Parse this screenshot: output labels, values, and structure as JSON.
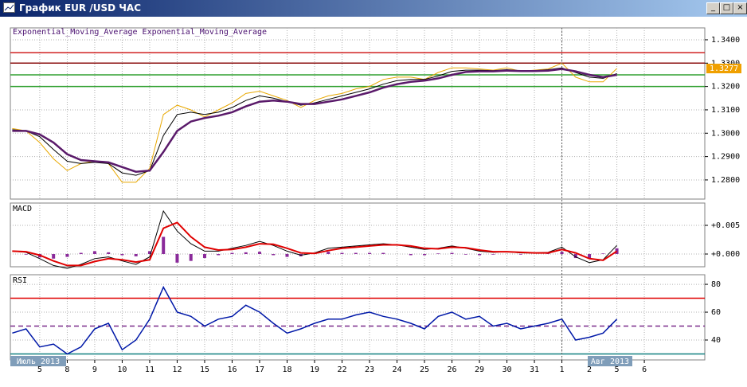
{
  "window": {
    "title": "График EUR /USD ЧАС"
  },
  "chart_data": [
    {
      "type": "line",
      "legend": [
        "Exponential_Moving_Average",
        "Exponential_Moving_Average"
      ],
      "x": [
        -1,
        -0.5,
        0,
        0.5,
        1,
        1.5,
        2,
        2.5,
        3,
        3.5,
        4,
        4.5,
        5,
        5.5,
        6,
        6.5,
        7,
        7.5,
        8,
        8.5,
        9,
        9.5,
        10,
        10.5,
        11,
        11.5,
        12,
        12.5,
        13,
        13.5,
        14,
        14.5,
        15,
        15.5,
        16,
        16.5,
        17,
        17.5,
        18,
        18.5,
        19,
        19.5,
        20,
        20.5,
        21
      ],
      "xlim": [
        -1.07,
        24.2
      ],
      "ylim": [
        1.2718,
        1.3451
      ],
      "yticks": [
        {
          "value": 1.28,
          "label": "1.2800"
        },
        {
          "value": 1.29,
          "label": "1.2900"
        },
        {
          "value": 1.3,
          "label": "1.3000"
        },
        {
          "value": 1.31,
          "label": "1.3100"
        },
        {
          "value": 1.32,
          "label": "1.3200"
        },
        {
          "value": 1.33,
          "label": "1.3300"
        },
        {
          "value": 1.34,
          "label": "1.3400"
        }
      ],
      "levels": [
        {
          "value": 1.3345,
          "color": "#d02020"
        },
        {
          "value": 1.33,
          "color": "#8b1010"
        },
        {
          "value": 1.325,
          "color": "#30a030"
        },
        {
          "value": 1.32,
          "color": "#30a030"
        }
      ],
      "last_price": 1.3277,
      "last_price_color": "#f0a000",
      "series": [
        {
          "color": "#e8a800",
          "width": 1,
          "values": [
            1.302,
            1.301,
            1.296,
            1.289,
            1.284,
            1.287,
            1.288,
            1.287,
            1.279,
            1.279,
            1.285,
            1.308,
            1.312,
            1.31,
            1.307,
            1.31,
            1.313,
            1.317,
            1.318,
            1.316,
            1.314,
            1.311,
            1.314,
            1.316,
            1.317,
            1.319,
            1.32,
            1.323,
            1.324,
            1.324,
            1.323,
            1.326,
            1.328,
            1.328,
            1.3275,
            1.327,
            1.328,
            1.3265,
            1.327,
            1.3275,
            1.33,
            1.324,
            1.322,
            1.322,
            1.3277
          ]
        },
        {
          "name": "Exponential_Moving_Average",
          "color": "#000000",
          "width": 1,
          "values": [
            1.3015,
            1.301,
            1.2985,
            1.293,
            1.288,
            1.287,
            1.2875,
            1.287,
            1.283,
            1.282,
            1.284,
            1.299,
            1.308,
            1.309,
            1.308,
            1.309,
            1.311,
            1.314,
            1.316,
            1.315,
            1.3135,
            1.312,
            1.313,
            1.3145,
            1.316,
            1.3175,
            1.319,
            1.321,
            1.3225,
            1.323,
            1.323,
            1.3245,
            1.3265,
            1.327,
            1.327,
            1.3268,
            1.3272,
            1.3268,
            1.3268,
            1.3272,
            1.328,
            1.326,
            1.324,
            1.3235,
            1.3255
          ]
        },
        {
          "name": "Exponential_Moving_Average",
          "color": "#5a1a6a",
          "width": 2.5,
          "values": [
            1.301,
            1.301,
            1.2995,
            1.296,
            1.291,
            1.2885,
            1.288,
            1.2875,
            1.2855,
            1.2835,
            1.284,
            1.292,
            1.301,
            1.305,
            1.3065,
            1.3075,
            1.309,
            1.3115,
            1.3135,
            1.314,
            1.3135,
            1.3125,
            1.3125,
            1.3135,
            1.3145,
            1.316,
            1.3175,
            1.3195,
            1.321,
            1.322,
            1.3225,
            1.3235,
            1.325,
            1.3262,
            1.3265,
            1.3265,
            1.3268,
            1.3266,
            1.3266,
            1.3268,
            1.3275,
            1.3265,
            1.325,
            1.324,
            1.325
          ]
        }
      ]
    },
    {
      "type": "line",
      "title": "MACD",
      "x": [
        -1,
        -0.5,
        0,
        0.5,
        1,
        1.5,
        2,
        2.5,
        3,
        3.5,
        4,
        4.5,
        5,
        5.5,
        6,
        6.5,
        7,
        7.5,
        8,
        8.5,
        9,
        9.5,
        10,
        10.5,
        11,
        11.5,
        12,
        12.5,
        13,
        13.5,
        14,
        14.5,
        15,
        15.5,
        16,
        16.5,
        17,
        17.5,
        18,
        18.5,
        19,
        19.5,
        20,
        20.5,
        21
      ],
      "xlim": [
        -1.07,
        24.2
      ],
      "ylim": [
        -0.00222,
        0.00889
      ],
      "yticks": [
        {
          "value": 0,
          "label": "+0.000"
        },
        {
          "value": 0.005,
          "label": "+0.005"
        }
      ],
      "series": [
        {
          "type": "bar",
          "color": "#8a2a9a",
          "values": [
            0,
            -0.0001,
            -0.0006,
            -0.0008,
            -0.0005,
            0.0002,
            0.0005,
            0.0003,
            -0.0002,
            -0.0004,
            0.0005,
            0.003,
            -0.0015,
            -0.0012,
            -0.0007,
            -0.0002,
            0.0002,
            0.0003,
            0.0004,
            -0.0002,
            -0.0005,
            -0.0004,
            0.0001,
            0.0004,
            0.0002,
            0.0002,
            0.0002,
            0.0002,
            0,
            -0.0002,
            -0.0002,
            0.0001,
            0.0002,
            -0.0001,
            -0.0002,
            -0.0001,
            0,
            -0.0001,
            0,
            0.0001,
            0.0004,
            -0.0007,
            -0.0007,
            0.0001,
            0.001
          ]
        },
        {
          "color": "#000000",
          "width": 1,
          "values": [
            0.0005,
            0.0003,
            -0.0008,
            -0.002,
            -0.0025,
            -0.0018,
            -0.0008,
            -0.0005,
            -0.0012,
            -0.0018,
            -0.0005,
            0.0075,
            0.004,
            0.0018,
            0.0005,
            0.0005,
            0.001,
            0.0015,
            0.0022,
            0.0015,
            0.0005,
            -0.0002,
            0.0002,
            0.001,
            0.0012,
            0.0014,
            0.0016,
            0.0018,
            0.0016,
            0.0012,
            0.0008,
            0.001,
            0.0014,
            0.001,
            0.0005,
            0.0003,
            0.0004,
            0.0002,
            0.0002,
            0.0003,
            0.0012,
            -0.0005,
            -0.0015,
            -0.001,
            0.0015
          ]
        },
        {
          "color": "#e00000",
          "width": 2,
          "values": [
            0.0005,
            0.0004,
            -0.0002,
            -0.0012,
            -0.002,
            -0.002,
            -0.0013,
            -0.0008,
            -0.001,
            -0.0014,
            -0.001,
            0.0045,
            0.0055,
            0.003,
            0.0012,
            0.0007,
            0.0008,
            0.0012,
            0.0018,
            0.0017,
            0.001,
            0.0002,
            0.0001,
            0.0006,
            0.001,
            0.0012,
            0.0014,
            0.0016,
            0.0016,
            0.0014,
            0.001,
            0.0009,
            0.0012,
            0.0011,
            0.0007,
            0.0004,
            0.0004,
            0.0003,
            0.0002,
            0.0002,
            0.0008,
            0.0002,
            -0.0008,
            -0.0011,
            0.0005
          ]
        }
      ]
    },
    {
      "type": "line",
      "title": "RSI",
      "x": [
        -1,
        -0.5,
        0,
        0.5,
        1,
        1.5,
        2,
        2.5,
        3,
        3.5,
        4,
        4.5,
        5,
        5.5,
        6,
        6.5,
        7,
        7.5,
        8,
        8.5,
        9,
        9.5,
        10,
        10.5,
        11,
        11.5,
        12,
        12.5,
        13,
        13.5,
        14,
        14.5,
        15,
        15.5,
        16,
        16.5,
        17,
        17.5,
        18,
        18.5,
        19,
        19.5,
        20,
        20.5,
        21
      ],
      "xlim": [
        -1.07,
        24.2
      ],
      "ylim": [
        25.7,
        86.9
      ],
      "yticks": [
        40,
        60,
        80
      ],
      "levels": [
        {
          "value": 70,
          "color": "#e00000"
        },
        {
          "value": 50,
          "color": "#7a2a8a",
          "dashed": true
        },
        {
          "value": 30,
          "color": "#108080"
        }
      ],
      "xticks": [
        {
          "value": 0,
          "label": "5"
        },
        {
          "value": 1,
          "label": "8"
        },
        {
          "value": 2,
          "label": "9"
        },
        {
          "value": 3,
          "label": "10"
        },
        {
          "value": 4,
          "label": "11"
        },
        {
          "value": 5,
          "label": "12"
        },
        {
          "value": 6,
          "label": "15"
        },
        {
          "value": 7,
          "label": "16"
        },
        {
          "value": 8,
          "label": "17"
        },
        {
          "value": 9,
          "label": "18"
        },
        {
          "value": 10,
          "label": "19"
        },
        {
          "value": 11,
          "label": "22"
        },
        {
          "value": 12,
          "label": "23"
        },
        {
          "value": 13,
          "label": "24"
        },
        {
          "value": 14,
          "label": "25"
        },
        {
          "value": 15,
          "label": "26"
        },
        {
          "value": 16,
          "label": "29"
        },
        {
          "value": 17,
          "label": "30"
        },
        {
          "value": 18,
          "label": "31"
        },
        {
          "value": 19,
          "label": "1"
        },
        {
          "value": 20,
          "label": "2"
        },
        {
          "value": 21,
          "label": "5"
        },
        {
          "value": 22,
          "label": "6"
        }
      ],
      "month_labels": [
        "Июль 2013",
        "Авг 2013"
      ],
      "series": [
        {
          "color": "#0018a8",
          "width": 1.5,
          "values": [
            45,
            48,
            35,
            37,
            30,
            35,
            48,
            52,
            33,
            40,
            55,
            78,
            60,
            57,
            50,
            55,
            57,
            65,
            60,
            52,
            45,
            48,
            52,
            55,
            55,
            58,
            60,
            57,
            55,
            52,
            48,
            57,
            60,
            55,
            57,
            50,
            52,
            48,
            50,
            52,
            55,
            40,
            42,
            45,
            55
          ]
        }
      ]
    }
  ]
}
